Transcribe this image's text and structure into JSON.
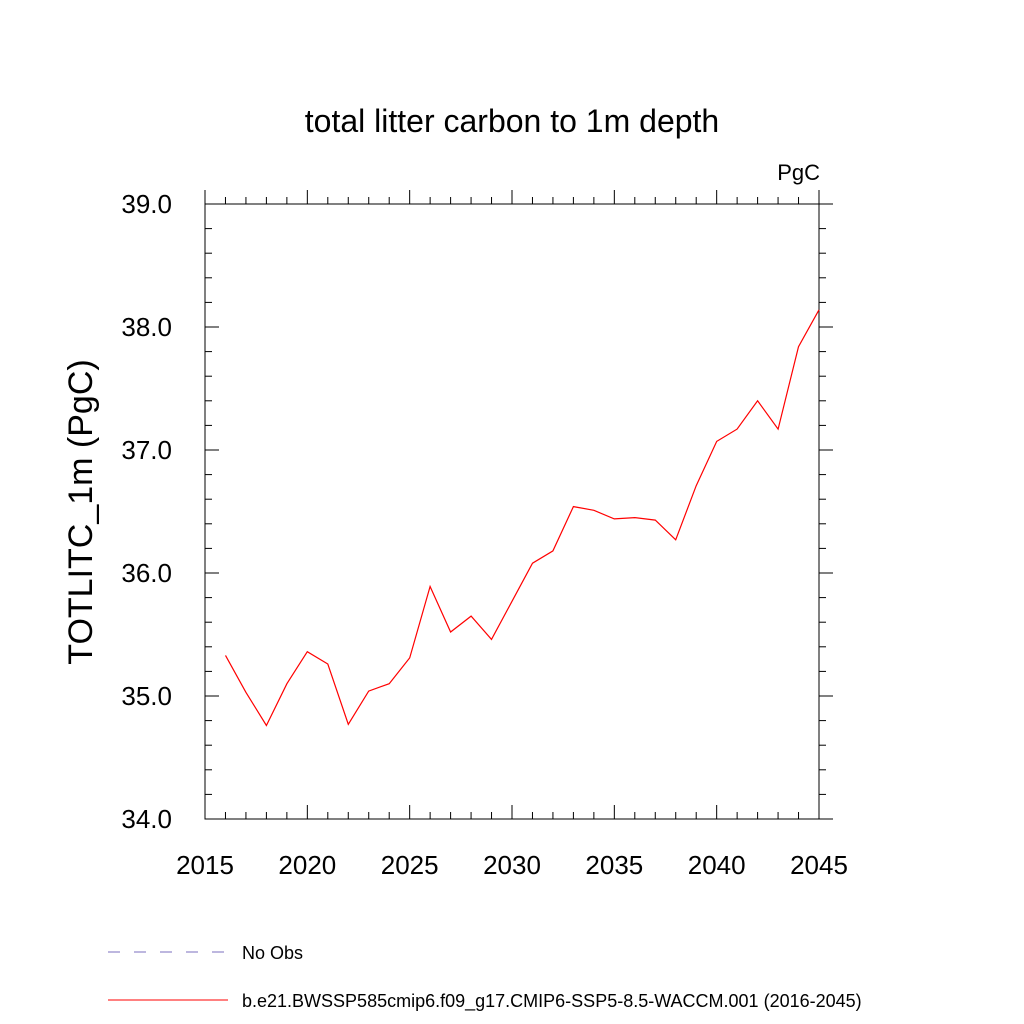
{
  "chart_data": {
    "type": "line",
    "title": "total litter carbon to 1m depth",
    "units": "PgC",
    "xlabel": "",
    "ylabel": "TOTLITC_1m  (PgC)",
    "xlim": [
      2015,
      2045
    ],
    "ylim": [
      34.0,
      39.0
    ],
    "xticks": [
      "2015",
      "2020",
      "2025",
      "2030",
      "2035",
      "2040",
      "2045"
    ],
    "yticks": [
      "34.0",
      "35.0",
      "36.0",
      "37.0",
      "38.0",
      "39.0"
    ],
    "grid": false,
    "legend_position": "bottom",
    "series": [
      {
        "name": "No Obs",
        "color": "#7b6fbf",
        "dashed": true,
        "x": [],
        "y": []
      },
      {
        "name": "b.e21.BWSSP585cmip6.f09_g17.CMIP6-SSP5-8.5-WACCM.001 (2016-2045)",
        "color": "#ff0000",
        "dashed": false,
        "x": [
          2016,
          2017,
          2018,
          2019,
          2020,
          2021,
          2022,
          2023,
          2024,
          2025,
          2026,
          2027,
          2028,
          2029,
          2030,
          2031,
          2032,
          2033,
          2034,
          2035,
          2036,
          2037,
          2038,
          2039,
          2040,
          2041,
          2042,
          2043,
          2044,
          2045
        ],
        "y": [
          35.33,
          35.03,
          34.76,
          35.1,
          35.36,
          35.26,
          34.77,
          35.04,
          35.1,
          35.31,
          35.89,
          35.52,
          35.65,
          35.46,
          35.77,
          36.08,
          36.18,
          36.54,
          36.51,
          36.44,
          36.45,
          36.43,
          36.27,
          36.71,
          37.07,
          37.17,
          37.4,
          37.17,
          37.84,
          38.14
        ]
      }
    ]
  }
}
